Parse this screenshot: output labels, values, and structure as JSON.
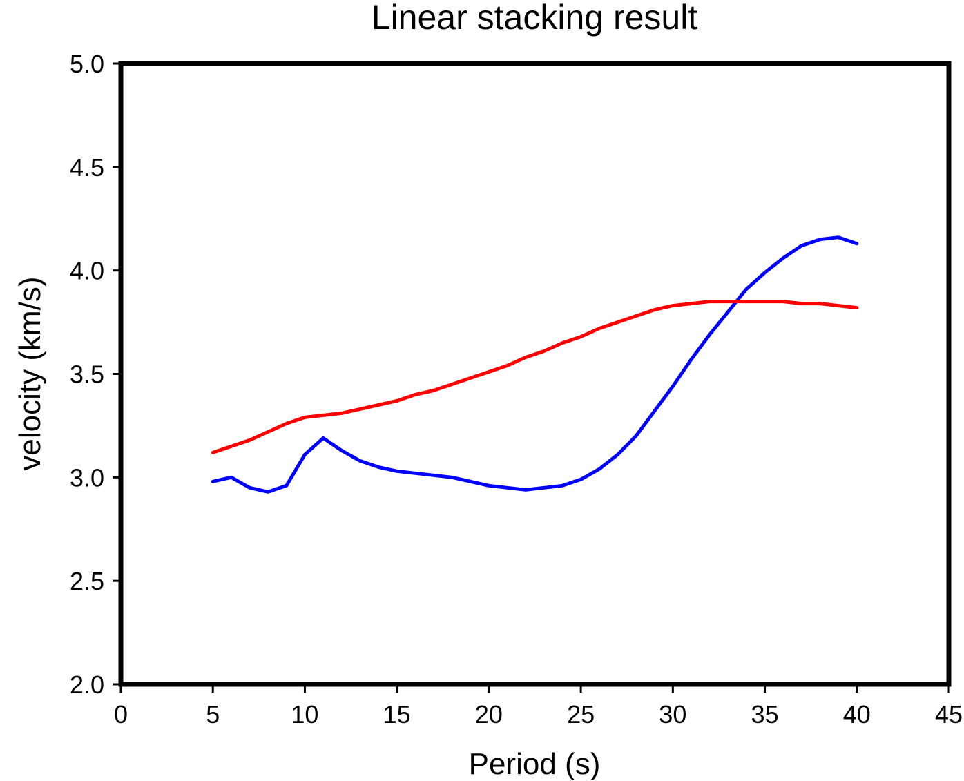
{
  "chart_data": {
    "type": "line",
    "title": "Linear stacking result",
    "xlabel": "Period (s)",
    "ylabel": "velocity (km/s)",
    "xlim": [
      0,
      45
    ],
    "ylim": [
      2.0,
      5.0
    ],
    "xticks": [
      "0",
      "5",
      "10",
      "15",
      "20",
      "25",
      "30",
      "35",
      "40",
      "45"
    ],
    "yticks": [
      "2.0",
      "2.5",
      "3.0",
      "3.5",
      "4.0",
      "4.5",
      "5.0"
    ],
    "grid": false,
    "series": [
      {
        "name": "blue",
        "color": "#0000ff",
        "x": [
          5,
          6,
          7,
          8,
          9,
          10,
          11,
          12,
          13,
          14,
          15,
          16,
          17,
          18,
          19,
          20,
          21,
          22,
          23,
          24,
          25,
          26,
          27,
          28,
          29,
          30,
          31,
          32,
          33,
          34,
          35,
          36,
          37,
          38,
          39,
          40
        ],
        "y": [
          2.98,
          3.0,
          2.95,
          2.93,
          2.96,
          3.11,
          3.19,
          3.13,
          3.08,
          3.05,
          3.03,
          3.02,
          3.01,
          3.0,
          2.98,
          2.96,
          2.95,
          2.94,
          2.95,
          2.96,
          2.99,
          3.04,
          3.11,
          3.2,
          3.32,
          3.44,
          3.57,
          3.69,
          3.8,
          3.91,
          3.99,
          4.06,
          4.12,
          4.15,
          4.16,
          4.13
        ]
      },
      {
        "name": "red",
        "color": "#ff0000",
        "x": [
          5,
          6,
          7,
          8,
          9,
          10,
          11,
          12,
          13,
          14,
          15,
          16,
          17,
          18,
          19,
          20,
          21,
          22,
          23,
          24,
          25,
          26,
          27,
          28,
          29,
          30,
          31,
          32,
          33,
          34,
          35,
          36,
          37,
          38,
          39,
          40
        ],
        "y": [
          3.12,
          3.15,
          3.18,
          3.22,
          3.26,
          3.29,
          3.3,
          3.31,
          3.33,
          3.35,
          3.37,
          3.4,
          3.42,
          3.45,
          3.48,
          3.51,
          3.54,
          3.58,
          3.61,
          3.65,
          3.68,
          3.72,
          3.75,
          3.78,
          3.81,
          3.83,
          3.84,
          3.85,
          3.85,
          3.85,
          3.85,
          3.85,
          3.84,
          3.84,
          3.83,
          3.82
        ]
      }
    ]
  }
}
